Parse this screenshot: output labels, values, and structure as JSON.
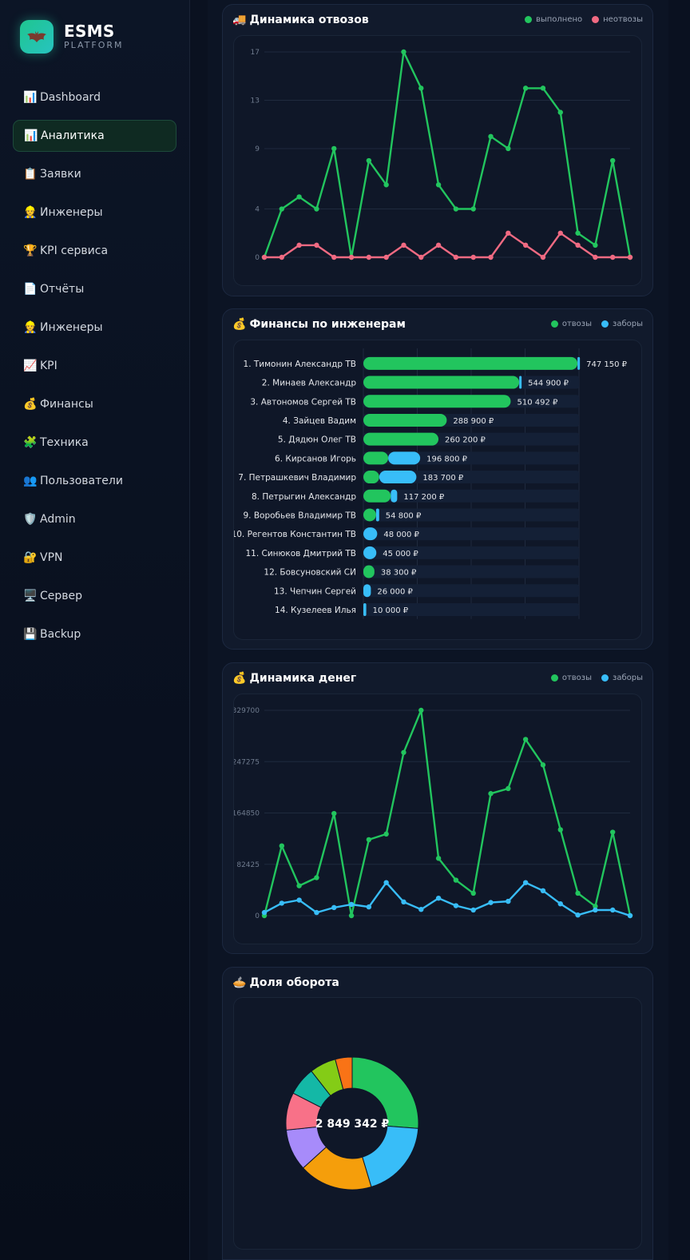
{
  "brand": {
    "name": "ESMS",
    "sub": "PLATFORM",
    "logo_icon": "bat-icon",
    "accent": "#22c55e"
  },
  "nav": [
    {
      "icon": "📊",
      "label": "Dashboard",
      "active": false
    },
    {
      "icon": "📊",
      "label": "Аналитика",
      "active": true
    },
    {
      "icon": "📋",
      "label": "Заявки",
      "active": false
    },
    {
      "icon": "👷",
      "label": "Инженеры",
      "active": false
    },
    {
      "icon": "🏆",
      "label": "KPI сервиса",
      "active": false
    },
    {
      "icon": "📄",
      "label": "Отчёты",
      "active": false
    },
    {
      "icon": "👷",
      "label": "Инженеры",
      "active": false
    },
    {
      "icon": "📈",
      "label": "KPI",
      "active": false
    },
    {
      "icon": "💰",
      "label": "Финансы",
      "active": false
    },
    {
      "icon": "🧩",
      "label": "Техника",
      "active": false
    },
    {
      "icon": "👥",
      "label": "Пользователи",
      "active": false
    },
    {
      "icon": "🛡️",
      "label": "Admin",
      "active": false
    },
    {
      "icon": "🔐",
      "label": "VPN",
      "active": false
    },
    {
      "icon": "🖥️",
      "label": "Сервер",
      "active": false
    },
    {
      "icon": "💾",
      "label": "Backup",
      "active": false
    }
  ],
  "cards": {
    "dynamics": {
      "icon": "🚚",
      "title": "Динамика отвозов",
      "legend": [
        "выполнено",
        "неотвозы"
      ]
    },
    "finance": {
      "icon": "💰",
      "title": "Финансы по инженерам",
      "legend": [
        "отвозы",
        "заборы"
      ]
    },
    "money": {
      "icon": "💰",
      "title": "Динамика денег",
      "legend": [
        "отвозы",
        "заборы"
      ]
    },
    "share": {
      "icon": "🥧",
      "title": "Доля оборота"
    }
  },
  "chart_data": [
    {
      "type": "line",
      "title": "Динамика отвозов",
      "yticks": [
        0,
        4,
        9,
        13,
        17
      ],
      "ylim": [
        0,
        17
      ],
      "grid": true,
      "legend_position": "top-right",
      "series": [
        {
          "name": "выполнено",
          "color": "#22c55e",
          "values": [
            0,
            4,
            5,
            4,
            9,
            0,
            8,
            6,
            17,
            14,
            6,
            4,
            4,
            10,
            9,
            14,
            14,
            12,
            2,
            1,
            8,
            0
          ]
        },
        {
          "name": "неотвозы",
          "color": "#f06a82",
          "values": [
            0,
            0,
            1,
            1,
            0,
            0,
            0,
            0,
            1,
            0,
            1,
            0,
            0,
            0,
            2,
            1,
            0,
            2,
            1,
            0,
            0,
            0
          ]
        }
      ]
    },
    {
      "type": "bar",
      "title": "Финансы по инженерам",
      "orientation": "horizontal",
      "stacked": true,
      "categories": [
        "1. Тимонин Александр ТВ",
        "2. Минаев Александр",
        "3. Автономов Сергей ТВ",
        "4. Зайцев Вадим",
        "5. Дядюн Олег ТВ",
        "6. Кирсанов Игорь",
        "7. Петрашкевич Владимир",
        "8. Петрыгин Александр",
        "9. Воробьев Владимир ТВ",
        "10. Регентов Константин ТВ",
        "11. Синюков Дмитрий ТВ",
        "12. Бовсуновский СИ",
        "13. Чепчин Сергей",
        "14. Кузелеев Илья"
      ],
      "totals": [
        "747 150 ₽",
        "544 900 ₽",
        "510 492 ₽",
        "288 900 ₽",
        "260 200 ₽",
        "196 800 ₽",
        "183 700 ₽",
        "117 200 ₽",
        "54 800 ₽",
        "48 000 ₽",
        "45 000 ₽",
        "38 300 ₽",
        "26 000 ₽",
        "10 000 ₽"
      ],
      "xlim": [
        0,
        747150
      ],
      "series": [
        {
          "name": "отвозы",
          "color": "#22c55e",
          "values": [
            742000,
            540000,
            510492,
            288900,
            260200,
            86000,
            55000,
            95000,
            44000,
            0,
            0,
            38300,
            0,
            0
          ]
        },
        {
          "name": "заборы",
          "color": "#38bdf8",
          "values": [
            5150,
            4900,
            0,
            0,
            0,
            110800,
            128700,
            22200,
            10800,
            48000,
            45000,
            0,
            26000,
            10000
          ]
        }
      ]
    },
    {
      "type": "line",
      "title": "Динамика денег",
      "yticks": [
        0,
        82425,
        164850,
        247275,
        329700
      ],
      "ylim": [
        0,
        329700
      ],
      "grid": true,
      "legend_position": "top-right",
      "series": [
        {
          "name": "отвозы",
          "color": "#22c55e",
          "values": [
            0,
            112000,
            48000,
            61000,
            164000,
            0,
            122000,
            131000,
            262000,
            329700,
            92000,
            57000,
            36000,
            196000,
            204000,
            283000,
            242000,
            138000,
            36000,
            15000,
            134000,
            0
          ]
        },
        {
          "name": "заборы",
          "color": "#38bdf8",
          "values": [
            5000,
            20000,
            25000,
            5000,
            13000,
            18000,
            14000,
            53000,
            22000,
            10000,
            28000,
            16000,
            9000,
            21000,
            23000,
            53000,
            40000,
            19000,
            1000,
            9000,
            9000,
            0
          ]
        }
      ]
    },
    {
      "type": "pie",
      "title": "Доля оборота",
      "center_label": "2 849 342 ₽",
      "donut": true,
      "slices": [
        {
          "value": 747150,
          "color": "#22c55e"
        },
        {
          "value": 544900,
          "color": "#38bdf8"
        },
        {
          "value": 510492,
          "color": "#f59e0b"
        },
        {
          "value": 288900,
          "color": "#a78bfa"
        },
        {
          "value": 260200,
          "color": "#f87188"
        },
        {
          "value": 196800,
          "color": "#14b8a6"
        },
        {
          "value": 183700,
          "color": "#84cc16"
        },
        {
          "value": 117200,
          "color": "#f97316"
        }
      ]
    }
  ]
}
